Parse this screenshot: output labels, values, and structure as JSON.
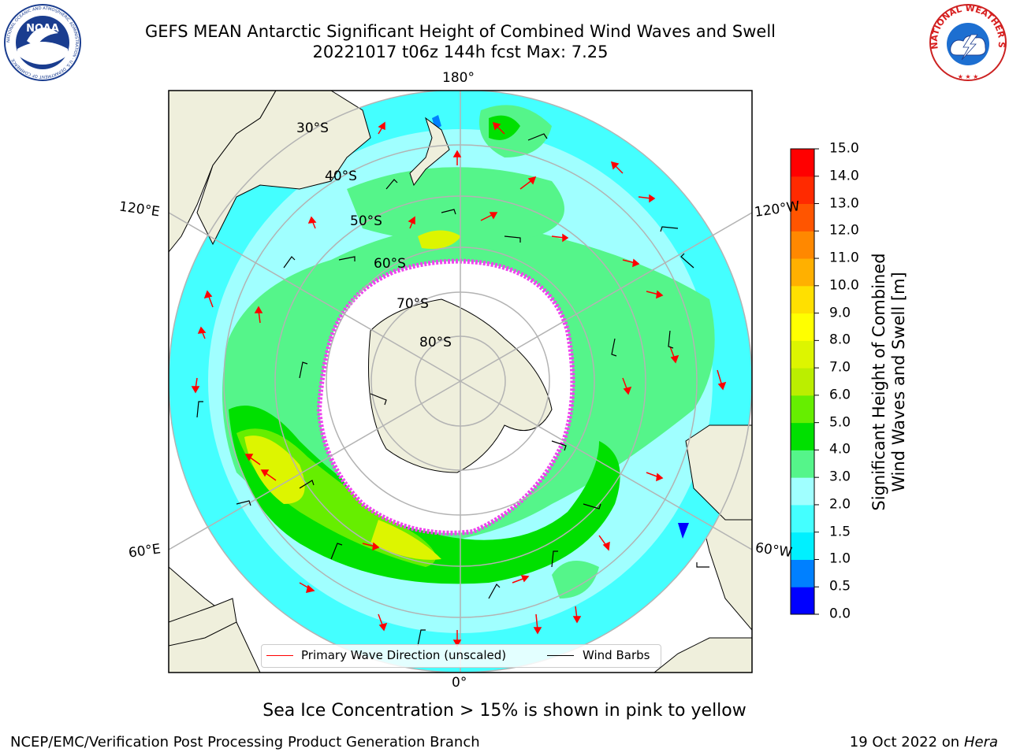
{
  "title": {
    "line1": "GEFS MEAN Antarctic Significant Height of Combined Wind Waves and Swell",
    "line2": "20221017 t06z 144h fcst   Max: 7.25"
  },
  "logos": {
    "left": {
      "icon": "noaa-logo-icon",
      "text": "NOAA",
      "ring_text": "NATIONAL OCEANIC AND ATMOSPHERIC ADMINISTRATION · U.S. DEPARTMENT OF COMMERCE"
    },
    "right": {
      "icon": "nws-logo-icon",
      "ring_text": "NATIONAL WEATHER SERVICE"
    }
  },
  "map": {
    "projection": "south-polar-stereographic",
    "meridian_labels": {
      "top": "180°",
      "bottom": "0°",
      "upper_left": "120°E",
      "upper_right": "120°W",
      "lower_left": "60°E",
      "lower_right": "60°W"
    },
    "latitude_labels": [
      "30°S",
      "40°S",
      "50°S",
      "60°S",
      "70°S",
      "80°S"
    ],
    "colors": {
      "land": "#efefdc",
      "coastline": "#000000",
      "gridline": "#b3b3b3",
      "sea_ice": "#ee44ee",
      "wave_arrow": "#ff0000",
      "wind_barb": "#000000"
    }
  },
  "colorbar": {
    "title_line1": "Significant Height of Combined",
    "title_line2": "Wind Waves and Swell [m]",
    "ticks": [
      "0.0",
      "0.5",
      "1.0",
      "1.5",
      "2.0",
      "3.0",
      "4.0",
      "5.0",
      "6.0",
      "7.0",
      "8.0",
      "9.0",
      "10.0",
      "11.0",
      "12.0",
      "13.0",
      "14.0",
      "15.0"
    ],
    "colors": [
      "#0000ff",
      "#0080ff",
      "#00f0ff",
      "#44ffff",
      "#a0ffff",
      "#55f58a",
      "#00e000",
      "#66ee00",
      "#bbee00",
      "#ddf500",
      "#ffff00",
      "#ffe000",
      "#ffb000",
      "#ff8800",
      "#ff5500",
      "#ff2a00",
      "#ff0000"
    ]
  },
  "legend": {
    "wave_label": "Primary Wave Direction (unscaled)",
    "barb_label": "Wind Barbs"
  },
  "sea_ice_note": "Sea Ice Concentration > 15% is shown in pink to yellow",
  "footer": {
    "left": "NCEP/EMC/Verification Post Processing Product Generation Branch",
    "right_date": "19 Oct 2022 on",
    "right_host": "Hera"
  }
}
